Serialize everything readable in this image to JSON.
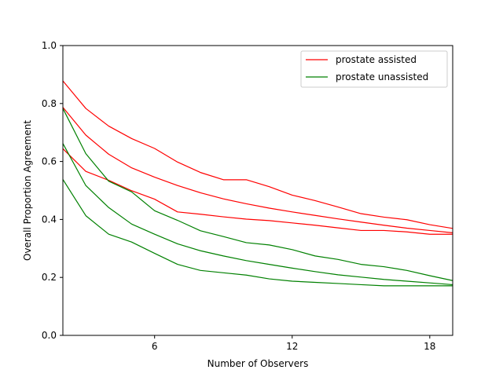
{
  "chart_data": {
    "type": "line",
    "xlabel": "Number of Observers",
    "ylabel": "Overall Proportion Agreement",
    "xlim": [
      2,
      19
    ],
    "ylim": [
      0.0,
      1.0
    ],
    "xticks": [
      6,
      12,
      18
    ],
    "yticks": [
      0.0,
      0.2,
      0.4,
      0.6,
      0.8,
      1.0
    ],
    "xtick_labels": [
      "6",
      "12",
      "18"
    ],
    "ytick_labels": [
      "0.0",
      "0.2",
      "0.4",
      "0.6",
      "0.8",
      "1.0"
    ],
    "grid": false,
    "legend_position": "top-right",
    "legend": [
      {
        "label": "prostate assisted",
        "color": "#ff0000"
      },
      {
        "label": "prostate unassisted",
        "color": "#008000"
      }
    ],
    "x": [
      2,
      3,
      4,
      5,
      6,
      7,
      8,
      9,
      10,
      11,
      12,
      13,
      14,
      15,
      16,
      17,
      18,
      19
    ],
    "series": [
      {
        "group": 0,
        "color": "#ff0000",
        "values": [
          0.878,
          0.783,
          0.722,
          0.679,
          0.645,
          0.598,
          0.562,
          0.537,
          0.537,
          0.513,
          0.484,
          0.465,
          0.443,
          0.42,
          0.408,
          0.399,
          0.382,
          0.369
        ]
      },
      {
        "group": 0,
        "color": "#ff0000",
        "values": [
          0.787,
          0.691,
          0.625,
          0.578,
          0.546,
          0.517,
          0.492,
          0.471,
          0.454,
          0.439,
          0.426,
          0.414,
          0.402,
          0.391,
          0.38,
          0.37,
          0.362,
          0.354
        ]
      },
      {
        "group": 0,
        "color": "#ff0000",
        "values": [
          0.644,
          0.566,
          0.535,
          0.499,
          0.47,
          0.426,
          0.418,
          0.409,
          0.401,
          0.396,
          0.388,
          0.38,
          0.371,
          0.362,
          0.362,
          0.357,
          0.349,
          0.349
        ]
      },
      {
        "group": 1,
        "color": "#008000",
        "values": [
          0.783,
          0.627,
          0.532,
          0.495,
          0.43,
          0.397,
          0.361,
          0.341,
          0.32,
          0.312,
          0.296,
          0.274,
          0.262,
          0.245,
          0.237,
          0.224,
          0.206,
          0.189
        ]
      },
      {
        "group": 1,
        "color": "#008000",
        "values": [
          0.662,
          0.517,
          0.441,
          0.384,
          0.349,
          0.316,
          0.292,
          0.274,
          0.258,
          0.245,
          0.232,
          0.22,
          0.209,
          0.201,
          0.193,
          0.187,
          0.181,
          0.175
        ]
      },
      {
        "group": 1,
        "color": "#008000",
        "values": [
          0.538,
          0.413,
          0.349,
          0.322,
          0.283,
          0.245,
          0.224,
          0.216,
          0.208,
          0.195,
          0.187,
          0.183,
          0.179,
          0.175,
          0.171,
          0.171,
          0.171,
          0.171
        ]
      }
    ]
  }
}
